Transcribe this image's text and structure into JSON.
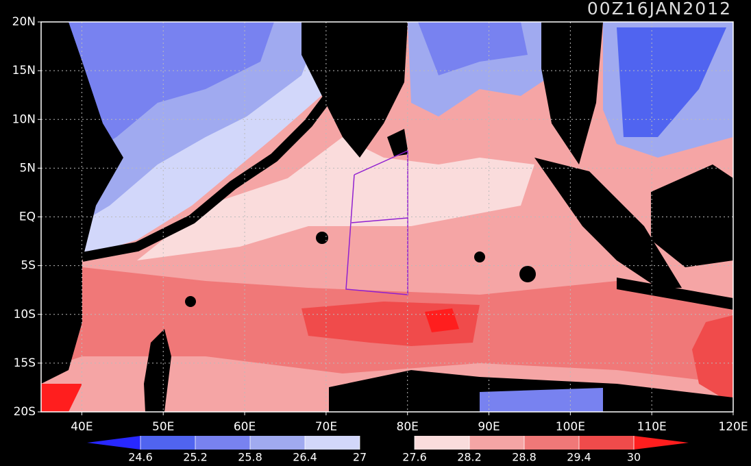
{
  "title": "00Z16JAN2012",
  "map": {
    "xlim": [
      35,
      120
    ],
    "ylim": [
      -20,
      20
    ],
    "xticks": [
      {
        "value": 40,
        "label": "40E"
      },
      {
        "value": 50,
        "label": "50E"
      },
      {
        "value": 60,
        "label": "60E"
      },
      {
        "value": 70,
        "label": "70E"
      },
      {
        "value": 80,
        "label": "80E"
      },
      {
        "value": 90,
        "label": "90E"
      },
      {
        "value": 100,
        "label": "100E"
      },
      {
        "value": 110,
        "label": "110E"
      },
      {
        "value": 120,
        "label": "120E"
      }
    ],
    "yticks": [
      {
        "value": 20,
        "label": "20N"
      },
      {
        "value": 15,
        "label": "15N"
      },
      {
        "value": 10,
        "label": "10N"
      },
      {
        "value": 5,
        "label": "5N"
      },
      {
        "value": 0,
        "label": "EQ"
      },
      {
        "value": -5,
        "label": "5S"
      },
      {
        "value": -10,
        "label": "10S"
      },
      {
        "value": -15,
        "label": "15S"
      },
      {
        "value": -20,
        "label": "20S"
      }
    ],
    "grid": true
  },
  "colorbar": {
    "levels": [
      24.6,
      25.2,
      25.8,
      26.4,
      27,
      27.6,
      28.2,
      28.8,
      29.4,
      30
    ],
    "colors": [
      "#2828ff",
      "#5064f0",
      "#7882f0",
      "#a0aaf0",
      "#d2d7fa",
      "#000000",
      "#fadcdc",
      "#f5a5a5",
      "#f07878",
      "#f04b4b",
      "#ff1e1e"
    ]
  }
}
